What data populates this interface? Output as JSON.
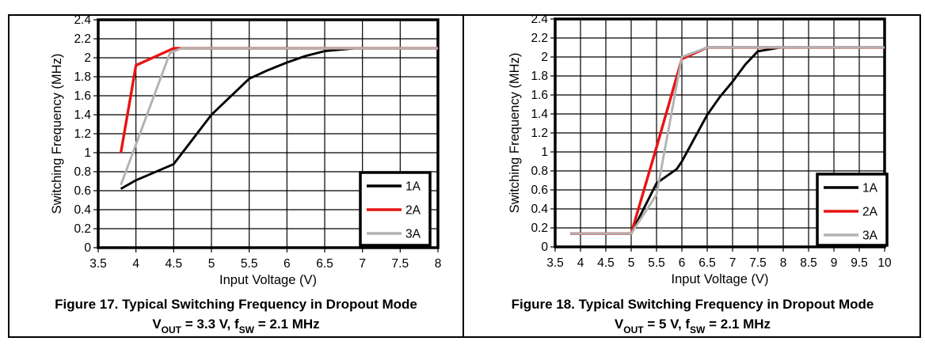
{
  "chart_data": [
    {
      "type": "line",
      "figure": "Figure 17",
      "caption": "Figure 17. Typical Switching Frequency in Dropout Mode",
      "conditions": {
        "pre": "V",
        "sub1": "OUT",
        "mid": " = 3.3 V, f",
        "sub2": "SW",
        "post": " = 2.1 MHz"
      },
      "xlabel": "Input Voltage (V)",
      "ylabel": "Switching Frequency (MHz)",
      "x_min": 3.5,
      "x_max": 8,
      "x_step": 0.5,
      "y_min": 0,
      "y_max": 2.4,
      "y_step": 0.2,
      "x_tick_labels": [
        "3.5",
        "4",
        "4.5",
        "5",
        "5.5",
        "6",
        "6.5",
        "7",
        "7.5",
        "8"
      ],
      "y_tick_labels": [
        "0",
        "0.2",
        "0.4",
        "0.6",
        "0.8",
        "1",
        "1.2",
        "1.4",
        "1.6",
        "1.8",
        "2",
        "2.2",
        "2.4"
      ],
      "grid": true,
      "legend_position": "bottom-right",
      "legend_border_color": "#000000",
      "series": [
        {
          "name": "1A",
          "color": "#000000",
          "points": [
            [
              3.8,
              0.62
            ],
            [
              4,
              0.71
            ],
            [
              4.5,
              0.88
            ],
            [
              5,
              1.4
            ],
            [
              5.5,
              1.78
            ],
            [
              5.75,
              1.87
            ],
            [
              6,
              1.95
            ],
            [
              6.25,
              2.02
            ],
            [
              6.5,
              2.07
            ],
            [
              6.9,
              2.1
            ],
            [
              8,
              2.1
            ]
          ]
        },
        {
          "name": "2A",
          "color": "#e81414",
          "points": [
            [
              3.8,
              1.0
            ],
            [
              4,
              1.92
            ],
            [
              4.5,
              2.1
            ],
            [
              8,
              2.1
            ]
          ]
        },
        {
          "name": "3A",
          "color": "#b2b2b2",
          "points": [
            [
              3.8,
              0.66
            ],
            [
              4.45,
              2.05
            ],
            [
              4.6,
              2.1
            ],
            [
              8,
              2.1
            ]
          ]
        }
      ]
    },
    {
      "type": "line",
      "figure": "Figure 18",
      "caption": "Figure 18. Typical Switching Frequency in Dropout Mode",
      "conditions": {
        "pre": "V",
        "sub1": "OUT",
        "mid": " = 5 V, f",
        "sub2": "SW",
        "post": " = 2.1 MHz"
      },
      "xlabel": "Input Voltage (V)",
      "ylabel": "Switching Frequency (MHz)",
      "x_min": 3.5,
      "x_max": 10,
      "x_step": 0.5,
      "y_min": 0,
      "y_max": 2.4,
      "y_step": 0.2,
      "x_tick_labels": [
        "3.5",
        "4",
        "4.5",
        "5",
        "5.5",
        "6",
        "6.5",
        "7",
        "7.5",
        "8",
        "8.5",
        "9",
        "9.5",
        "10"
      ],
      "y_tick_labels": [
        "0",
        "0.2",
        "0.4",
        "0.6",
        "0.8",
        "1",
        "1.2",
        "1.4",
        "1.6",
        "1.8",
        "2",
        "2.2",
        "2.4"
      ],
      "grid": true,
      "legend_position": "bottom-right",
      "legend_border_color": "#000000",
      "series": [
        {
          "name": "1A",
          "color": "#000000",
          "points": [
            [
              3.8,
              0.14
            ],
            [
              5,
              0.14
            ],
            [
              5.5,
              0.67
            ],
            [
              5.9,
              0.82
            ],
            [
              6,
              0.9
            ],
            [
              6.5,
              1.39
            ],
            [
              6.75,
              1.58
            ],
            [
              7,
              1.74
            ],
            [
              7.25,
              1.92
            ],
            [
              7.5,
              2.06
            ],
            [
              7.95,
              2.1
            ],
            [
              10,
              2.1
            ]
          ]
        },
        {
          "name": "2A",
          "color": "#e81414",
          "points": [
            [
              3.8,
              0.14
            ],
            [
              5,
              0.14
            ],
            [
              5.5,
              1.05
            ],
            [
              6,
              1.98
            ],
            [
              6.5,
              2.1
            ],
            [
              10,
              2.1
            ]
          ]
        },
        {
          "name": "3A",
          "color": "#b2b2b2",
          "points": [
            [
              3.8,
              0.14
            ],
            [
              5,
              0.14
            ],
            [
              5.5,
              0.55
            ],
            [
              6,
              2.0
            ],
            [
              6.5,
              2.1
            ],
            [
              10,
              2.1
            ]
          ]
        }
      ]
    }
  ]
}
